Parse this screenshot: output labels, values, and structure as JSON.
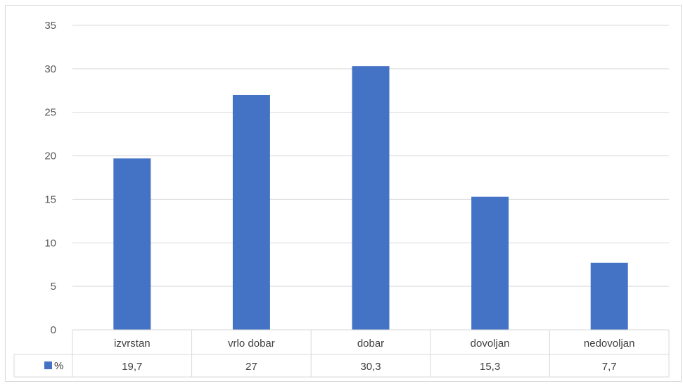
{
  "chart_data": {
    "type": "bar",
    "categories": [
      "izvrstan",
      "vrlo dobar",
      "dobar",
      "dovoljan",
      "nedovoljan"
    ],
    "series": [
      {
        "name": "%",
        "values": [
          19.7,
          27,
          30.3,
          15.3,
          7.7
        ],
        "display": [
          "19,7",
          "27",
          "30,3",
          "15,3",
          "7,7"
        ]
      }
    ],
    "ylim": [
      0,
      35
    ],
    "yticks": [
      0,
      5,
      10,
      15,
      20,
      25,
      30,
      35
    ],
    "grid": true,
    "legend": "data-table",
    "colors": {
      "bar": "#4472C4",
      "grid": "#d9d9d9",
      "border": "#d9d9d9"
    }
  }
}
